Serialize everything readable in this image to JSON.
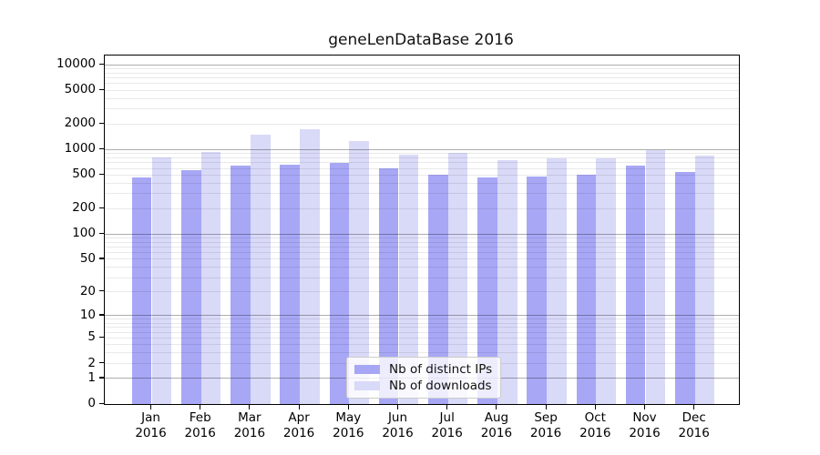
{
  "chart_data": {
    "type": "bar",
    "title": "geneLenDataBase 2016",
    "months": [
      "Jan",
      "Feb",
      "Mar",
      "Apr",
      "May",
      "Jun",
      "Jul",
      "Aug",
      "Sep",
      "Oct",
      "Nov",
      "Dec"
    ],
    "year_label": "2016",
    "series": [
      {
        "name": "Nb of distinct IPs",
        "color": "#a7a7f6",
        "values": [
          465,
          570,
          650,
          655,
          690,
          600,
          510,
          465,
          485,
          510,
          650,
          545
        ]
      },
      {
        "name": "Nb of downloads",
        "color": "#d9d9f8",
        "values": [
          810,
          940,
          1510,
          1740,
          1270,
          880,
          925,
          745,
          795,
          790,
          985,
          845
        ]
      }
    ],
    "y_scale": "log(1+x)",
    "y_tick_values": [
      0,
      1,
      2,
      5,
      10,
      20,
      50,
      100,
      200,
      500,
      1000,
      2000,
      5000,
      10000
    ],
    "y_major_grid_values": [
      1,
      10,
      100,
      1000,
      10000
    ],
    "ylim": [
      0,
      12500
    ],
    "xlabel": "",
    "ylabel": "",
    "grid": "horizontal major+minor, drawn over bars",
    "legend": {
      "position": "lower center",
      "items": [
        "Nb of distinct IPs",
        "Nb of downloads"
      ]
    },
    "background": "#ffffff",
    "axis_color": "#000000",
    "major_grid_color": "#b0b0b0",
    "minor_grid_color": "#e7e7e7"
  }
}
